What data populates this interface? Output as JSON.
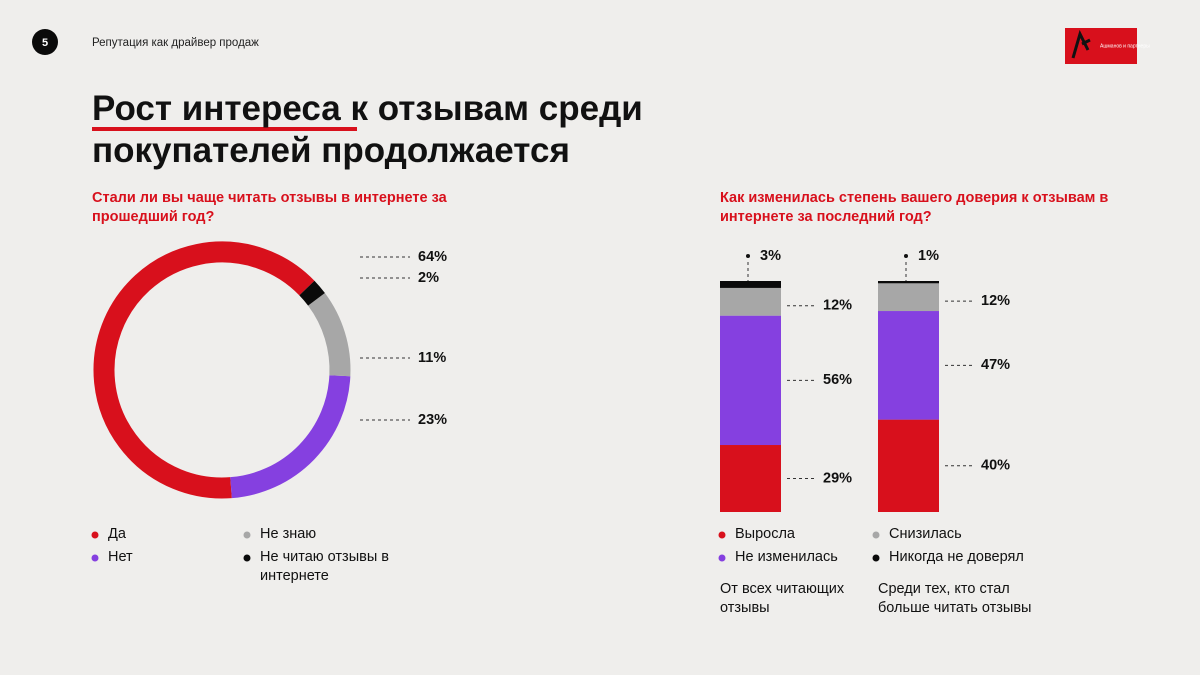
{
  "header": {
    "page_number": "5",
    "section": "Репутация как драйвер продаж",
    "logo_text": "Ашманов и партнеры",
    "title": "Рост интереса к отзывам среди покупателей продолжается"
  },
  "chart_data": [
    {
      "type": "donut",
      "title": "Стали ли вы чаще читать отзывы в интернете за прошедший год?",
      "categories": [
        "Да",
        "Нет",
        "Не знаю",
        "Не читаю отзывы в интернете"
      ],
      "values": [
        64,
        23,
        11,
        2
      ],
      "value_labels": [
        "64%",
        "23%",
        "11%",
        "2%"
      ],
      "colors": [
        "#d8101c",
        "#8540e0",
        "#a7a7a7",
        "#0a0a0a"
      ]
    },
    {
      "type": "stacked_bar",
      "title": "Как изменилась степень вашего доверия к отзывам в интернете за последний год?",
      "categories": [
        "От всех читающих отзывы",
        "Среди тех, кто стал больше читать отзывы"
      ],
      "series": [
        {
          "name": "Выросла",
          "color": "#d8101c",
          "values": [
            29,
            40
          ],
          "value_labels": [
            "29%",
            "40%"
          ]
        },
        {
          "name": "Не изменилась",
          "color": "#8540e0",
          "values": [
            56,
            47
          ],
          "value_labels": [
            "56%",
            "47%"
          ]
        },
        {
          "name": "Снизилась",
          "color": "#a7a7a7",
          "values": [
            12,
            12
          ],
          "value_labels": [
            "12%",
            "12%"
          ]
        },
        {
          "name": "Никогда не доверял",
          "color": "#0a0a0a",
          "values": [
            3,
            1
          ],
          "value_labels": [
            "3%",
            "1%"
          ]
        }
      ],
      "ylim": [
        0,
        100
      ]
    }
  ]
}
